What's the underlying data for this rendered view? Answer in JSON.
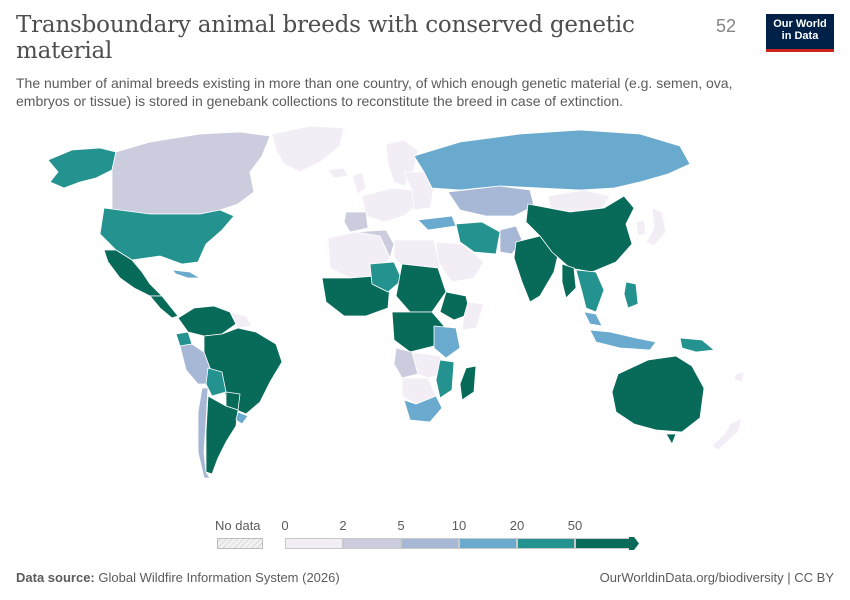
{
  "header": {
    "title": "Transboundary animal breeds with conserved genetic material",
    "year": "52",
    "subtitle": "The number of animal breeds existing in more than one country, of which enough genetic material (e.g. semen, ova, embryos or tissue) is stored in genebank collections to reconstitute the breed in case of extinction."
  },
  "logo": {
    "line1": "Our World",
    "line2": "in Data"
  },
  "legend": {
    "no_data_label": "No data",
    "ticks": [
      "0",
      "2",
      "5",
      "10",
      "20",
      "50"
    ],
    "colors": [
      "#f3eef6",
      "#ccccdf",
      "#a7b7d6",
      "#6aaace",
      "#24928f",
      "#086b5a"
    ]
  },
  "colors": {
    "no_data": "#e6e6e6",
    "land_default": "#f3eef6",
    "border": "#ffffff"
  },
  "footer": {
    "source_label": "Data source:",
    "source_text": "Global Wildfire Information System (2026)",
    "attribution": "OurWorldinData.org/biodiversity | CC BY"
  }
}
